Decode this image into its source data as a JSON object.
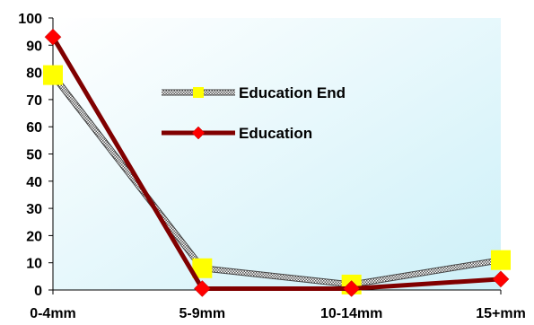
{
  "chart_data": {
    "type": "line",
    "categories": [
      "0-4mm",
      "5-9mm",
      "10-14mm",
      "15+mm"
    ],
    "ylim": [
      0,
      100
    ],
    "yticks": [
      0,
      10,
      20,
      30,
      40,
      50,
      60,
      70,
      80,
      90,
      100
    ],
    "grid": false,
    "legend_position": "upper-center",
    "plot_background": "#dff6fb",
    "series": [
      {
        "name": "Education End",
        "values": [
          79,
          8,
          2,
          11
        ],
        "line_color": "#8c8c8c",
        "line_style": "hatched",
        "marker": "square",
        "marker_color": "#ffff00"
      },
      {
        "name": "Education",
        "values": [
          93,
          0.5,
          0.5,
          4
        ],
        "line_color": "#800000",
        "marker": "diamond",
        "marker_color": "#ff0000"
      }
    ]
  }
}
